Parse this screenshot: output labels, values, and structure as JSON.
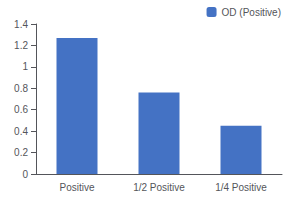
{
  "chart_data": {
    "type": "bar",
    "categories": [
      "Positive",
      "1/2 Positive",
      "1/4 Positive"
    ],
    "values": [
      1.27,
      0.76,
      0.45
    ],
    "series": [
      {
        "name": "OD (Positive)",
        "color": "#4472C4",
        "values": [
          1.27,
          0.76,
          0.45
        ]
      }
    ],
    "ylim": [
      0,
      1.4
    ],
    "yticks": [
      0,
      0.2,
      0.4,
      0.6,
      0.8,
      1,
      1.2,
      1.4
    ],
    "grid": false,
    "legend": "upper right"
  }
}
